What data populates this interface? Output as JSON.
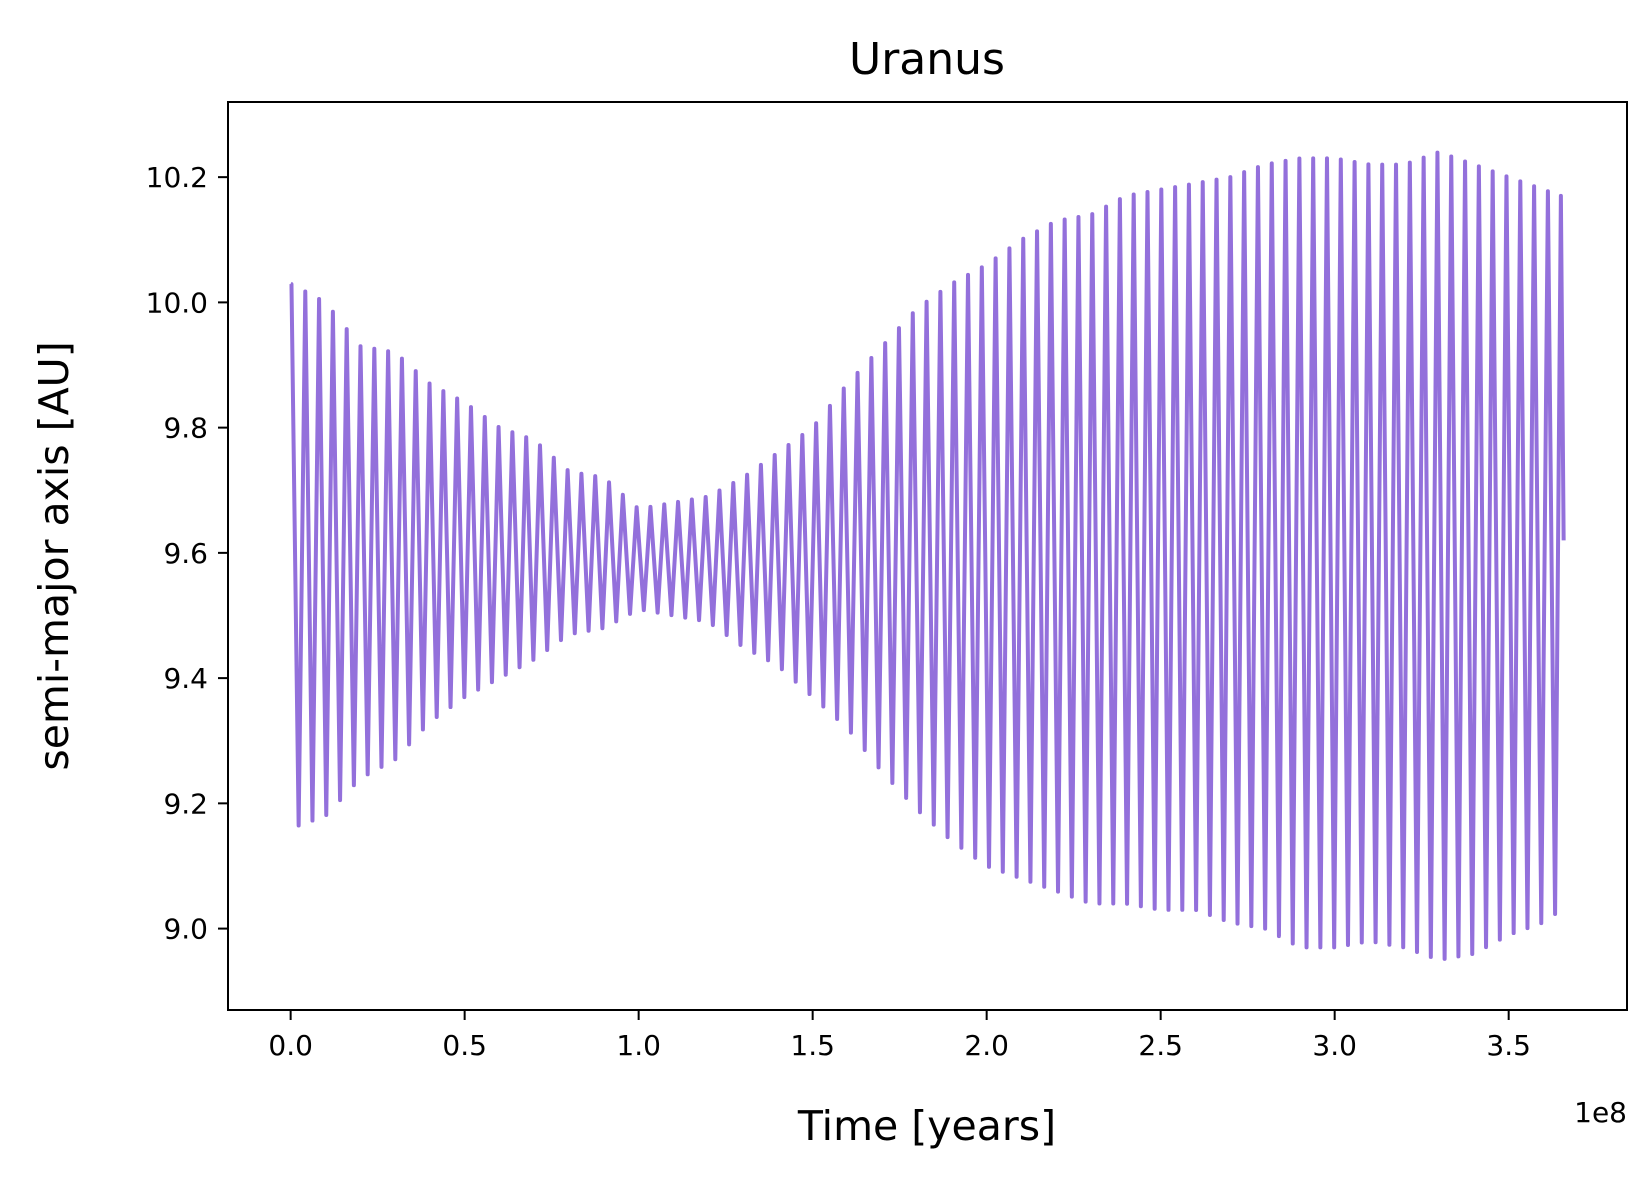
{
  "chart_data": {
    "type": "line",
    "title": "Uranus",
    "xlabel": "Time [years]",
    "ylabel": "semi-major axis [AU]",
    "x_offset_label": "1e8",
    "xlim": [
      -0.18,
      3.84
    ],
    "ylim": [
      8.87,
      10.32
    ],
    "xticks": [
      0.0,
      0.5,
      1.0,
      1.5,
      2.0,
      2.5,
      3.0,
      3.5
    ],
    "xtick_labels": [
      "0.0",
      "0.5",
      "1.0",
      "1.5",
      "2.0",
      "2.5",
      "3.0",
      "3.5"
    ],
    "yticks": [
      9.0,
      9.2,
      9.4,
      9.6,
      9.8,
      10.0,
      10.2
    ],
    "ytick_labels": [
      "9.0",
      "9.2",
      "9.4",
      "9.6",
      "9.8",
      "10.0",
      "10.2"
    ],
    "grid": false,
    "legend": "none",
    "series": [
      {
        "color": "#9370DB",
        "x_start": 0.0,
        "x_end": 3.65,
        "cycles": 92,
        "mid_value": 9.61,
        "end_value": 9.62,
        "upper_envelope": [
          [
            0.0,
            10.03
          ],
          [
            0.1,
            10.0
          ],
          [
            0.2,
            9.93
          ],
          [
            0.3,
            9.92
          ],
          [
            0.4,
            9.87
          ],
          [
            0.5,
            9.84
          ],
          [
            0.6,
            9.8
          ],
          [
            0.7,
            9.78
          ],
          [
            0.8,
            9.73
          ],
          [
            0.9,
            9.72
          ],
          [
            1.0,
            9.67
          ],
          [
            1.1,
            9.68
          ],
          [
            1.2,
            9.69
          ],
          [
            1.3,
            9.72
          ],
          [
            1.4,
            9.76
          ],
          [
            1.5,
            9.8
          ],
          [
            1.6,
            9.87
          ],
          [
            1.7,
            9.93
          ],
          [
            1.8,
            9.99
          ],
          [
            1.9,
            10.03
          ],
          [
            2.0,
            10.06
          ],
          [
            2.1,
            10.1
          ],
          [
            2.2,
            10.13
          ],
          [
            2.3,
            10.14
          ],
          [
            2.4,
            10.17
          ],
          [
            2.5,
            10.18
          ],
          [
            2.6,
            10.19
          ],
          [
            2.7,
            10.2
          ],
          [
            2.8,
            10.22
          ],
          [
            2.9,
            10.23
          ],
          [
            3.0,
            10.23
          ],
          [
            3.1,
            10.22
          ],
          [
            3.2,
            10.22
          ],
          [
            3.3,
            10.24
          ],
          [
            3.4,
            10.22
          ],
          [
            3.5,
            10.2
          ],
          [
            3.6,
            10.18
          ],
          [
            3.65,
            10.17
          ]
        ],
        "lower_envelope": [
          [
            0.0,
            9.16
          ],
          [
            0.1,
            9.18
          ],
          [
            0.2,
            9.24
          ],
          [
            0.3,
            9.27
          ],
          [
            0.4,
            9.33
          ],
          [
            0.5,
            9.37
          ],
          [
            0.6,
            9.4
          ],
          [
            0.7,
            9.43
          ],
          [
            0.8,
            9.47
          ],
          [
            0.9,
            9.48
          ],
          [
            1.0,
            9.51
          ],
          [
            1.1,
            9.5
          ],
          [
            1.2,
            9.49
          ],
          [
            1.3,
            9.45
          ],
          [
            1.4,
            9.42
          ],
          [
            1.5,
            9.37
          ],
          [
            1.6,
            9.32
          ],
          [
            1.7,
            9.25
          ],
          [
            1.8,
            9.19
          ],
          [
            1.9,
            9.14
          ],
          [
            2.0,
            9.1
          ],
          [
            2.1,
            9.08
          ],
          [
            2.2,
            9.06
          ],
          [
            2.3,
            9.04
          ],
          [
            2.4,
            9.04
          ],
          [
            2.5,
            9.03
          ],
          [
            2.6,
            9.03
          ],
          [
            2.7,
            9.01
          ],
          [
            2.8,
            9.0
          ],
          [
            2.9,
            8.97
          ],
          [
            3.0,
            8.97
          ],
          [
            3.1,
            8.98
          ],
          [
            3.2,
            8.97
          ],
          [
            3.3,
            8.95
          ],
          [
            3.4,
            8.96
          ],
          [
            3.5,
            8.99
          ],
          [
            3.6,
            9.01
          ],
          [
            3.65,
            9.03
          ]
        ]
      }
    ]
  }
}
